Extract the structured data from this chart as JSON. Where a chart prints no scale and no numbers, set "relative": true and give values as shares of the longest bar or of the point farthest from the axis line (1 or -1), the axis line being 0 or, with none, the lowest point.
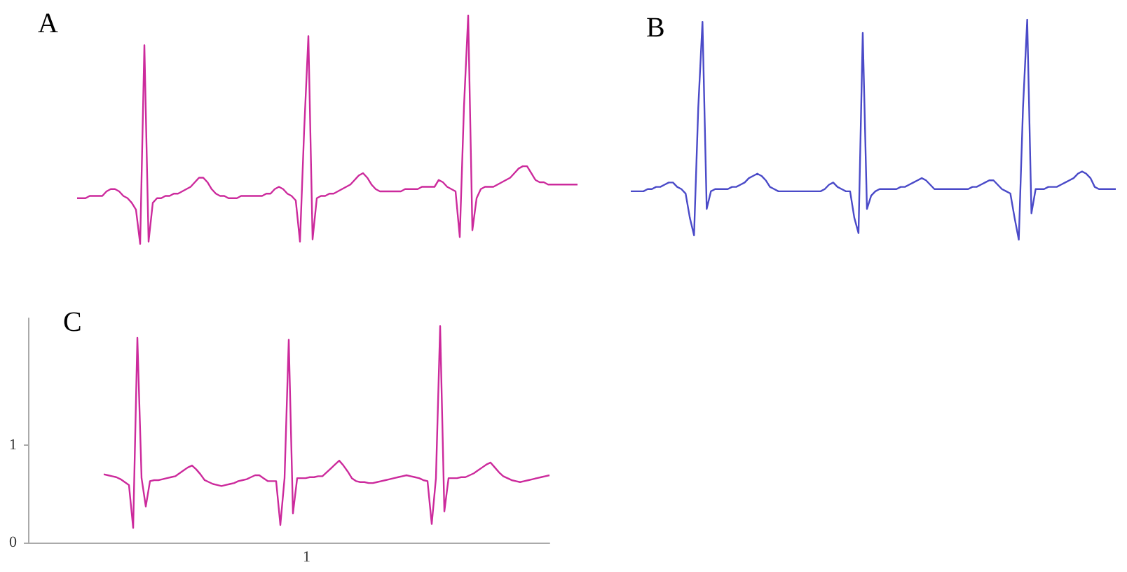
{
  "chart_data": [
    {
      "type": "line",
      "title": "A",
      "relative": true,
      "tick_labels": false,
      "grid": false,
      "marker": "none",
      "line_style": "solid",
      "categories": [
        null,
        null,
        null,
        null,
        null,
        null,
        null,
        null,
        null,
        null,
        null,
        null,
        null,
        null,
        null,
        null,
        null,
        null,
        null,
        null,
        null,
        null,
        null,
        null,
        null,
        null,
        null,
        null,
        null,
        null,
        null,
        null,
        null,
        null,
        null,
        null,
        null,
        null,
        null,
        null,
        null,
        null,
        null,
        null,
        null,
        null,
        null,
        null,
        null,
        null,
        null,
        null,
        null,
        null,
        null,
        null,
        null,
        null,
        null,
        null,
        null,
        null,
        null,
        null,
        null,
        null,
        null,
        null,
        null,
        null,
        null,
        null,
        null,
        null,
        null,
        null,
        null,
        null,
        null,
        null,
        null,
        null,
        null,
        null,
        null,
        null,
        null,
        null,
        null,
        null,
        null,
        null,
        null,
        null,
        null,
        null,
        null,
        null,
        null,
        null,
        null,
        null,
        null,
        null,
        null,
        null,
        null,
        null,
        null,
        null,
        null,
        null,
        null,
        null,
        null,
        null,
        null,
        null,
        null,
        null
      ],
      "series": [
        {
          "color": "#cc2a9c",
          "values": [
            0.2,
            0.2,
            0.2,
            0.21,
            0.21,
            0.21,
            0.21,
            0.23,
            0.24,
            0.24,
            0.23,
            0.21,
            0.2,
            0.18,
            0.15,
            0.0,
            0.87,
            0.01,
            0.18,
            0.2,
            0.2,
            0.21,
            0.21,
            0.22,
            0.22,
            0.23,
            0.24,
            0.25,
            0.27,
            0.29,
            0.29,
            0.27,
            0.24,
            0.22,
            0.21,
            0.21,
            0.2,
            0.2,
            0.2,
            0.21,
            0.21,
            0.21,
            0.21,
            0.21,
            0.21,
            0.22,
            0.22,
            0.24,
            0.25,
            0.24,
            0.22,
            0.21,
            0.19,
            0.01,
            0.5,
            0.91,
            0.02,
            0.2,
            0.21,
            0.21,
            0.22,
            0.22,
            0.23,
            0.24,
            0.25,
            0.26,
            0.28,
            0.3,
            0.31,
            0.29,
            0.26,
            0.24,
            0.23,
            0.23,
            0.23,
            0.23,
            0.23,
            0.23,
            0.24,
            0.24,
            0.24,
            0.24,
            0.25,
            0.25,
            0.25,
            0.25,
            0.28,
            0.27,
            0.25,
            0.24,
            0.23,
            0.03,
            0.6,
            1.0,
            0.06,
            0.2,
            0.24,
            0.25,
            0.25,
            0.25,
            0.26,
            0.27,
            0.28,
            0.29,
            0.31,
            0.33,
            0.34,
            0.34,
            0.31,
            0.28,
            0.27,
            0.27,
            0.26,
            0.26,
            0.26,
            0.26,
            0.26,
            0.26,
            0.26,
            0.26
          ]
        }
      ]
    },
    {
      "type": "line",
      "title": "B",
      "relative": true,
      "tick_labels": false,
      "grid": false,
      "marker": "none",
      "line_style": "solid",
      "categories": [
        null,
        null,
        null,
        null,
        null,
        null,
        null,
        null,
        null,
        null,
        null,
        null,
        null,
        null,
        null,
        null,
        null,
        null,
        null,
        null,
        null,
        null,
        null,
        null,
        null,
        null,
        null,
        null,
        null,
        null,
        null,
        null,
        null,
        null,
        null,
        null,
        null,
        null,
        null,
        null,
        null,
        null,
        null,
        null,
        null,
        null,
        null,
        null,
        null,
        null,
        null,
        null,
        null,
        null,
        null,
        null,
        null,
        null,
        null,
        null,
        null,
        null,
        null,
        null,
        null,
        null,
        null,
        null,
        null,
        null,
        null,
        null,
        null,
        null,
        null,
        null,
        null,
        null,
        null,
        null,
        null,
        null,
        null,
        null,
        null,
        null,
        null,
        null,
        null,
        null,
        null,
        null,
        null,
        null,
        null,
        null,
        null,
        null,
        null,
        null,
        null,
        null,
        null,
        null,
        null,
        null,
        null,
        null,
        null,
        null,
        null,
        null,
        null,
        null,
        null,
        null
      ],
      "series": [
        {
          "color": "#4a4ac8",
          "values": [
            0.22,
            0.22,
            0.22,
            0.22,
            0.23,
            0.23,
            0.24,
            0.24,
            0.25,
            0.26,
            0.26,
            0.24,
            0.23,
            0.21,
            0.1,
            0.02,
            0.6,
            0.99,
            0.14,
            0.22,
            0.23,
            0.23,
            0.23,
            0.23,
            0.24,
            0.24,
            0.25,
            0.26,
            0.28,
            0.29,
            0.3,
            0.29,
            0.27,
            0.24,
            0.23,
            0.22,
            0.22,
            0.22,
            0.22,
            0.22,
            0.22,
            0.22,
            0.22,
            0.22,
            0.22,
            0.22,
            0.23,
            0.25,
            0.26,
            0.24,
            0.23,
            0.22,
            0.22,
            0.1,
            0.03,
            0.94,
            0.14,
            0.2,
            0.22,
            0.23,
            0.23,
            0.23,
            0.23,
            0.23,
            0.24,
            0.24,
            0.25,
            0.26,
            0.27,
            0.28,
            0.27,
            0.25,
            0.23,
            0.23,
            0.23,
            0.23,
            0.23,
            0.23,
            0.23,
            0.23,
            0.23,
            0.24,
            0.24,
            0.25,
            0.26,
            0.27,
            0.27,
            0.25,
            0.23,
            0.22,
            0.21,
            0.1,
            0.0,
            0.6,
            1.0,
            0.12,
            0.23,
            0.23,
            0.23,
            0.24,
            0.24,
            0.24,
            0.25,
            0.26,
            0.27,
            0.28,
            0.3,
            0.31,
            0.3,
            0.28,
            0.24,
            0.23,
            0.23,
            0.23,
            0.23,
            0.23
          ]
        }
      ]
    },
    {
      "type": "line",
      "title": "C",
      "grid": false,
      "marker": "none",
      "line_style": "solid",
      "ylim": [
        0,
        2.3
      ],
      "yticks": [
        0,
        1
      ],
      "annotations": [
        "1"
      ],
      "categories": [
        null,
        null,
        null,
        null,
        null,
        null,
        null,
        null,
        null,
        null,
        null,
        null,
        null,
        null,
        null,
        null,
        null,
        null,
        null,
        null,
        null,
        null,
        null,
        null,
        null,
        null,
        null,
        null,
        null,
        null,
        null,
        null,
        null,
        null,
        null,
        null,
        null,
        null,
        null,
        null,
        null,
        null,
        null,
        null,
        null,
        null,
        null,
        null,
        null,
        null,
        null,
        null,
        null,
        null,
        null,
        null,
        null,
        null,
        null,
        null,
        null,
        null,
        null,
        null,
        null,
        null,
        null,
        null,
        null,
        null,
        null,
        null,
        null,
        null,
        null,
        null,
        null,
        null,
        null,
        null,
        null,
        null,
        null,
        null,
        null,
        null,
        null,
        null,
        null,
        null,
        null,
        null,
        null,
        null,
        null,
        null,
        null,
        null,
        null,
        null,
        null,
        null,
        null,
        null,
        null,
        null,
        null,
        null,
        null,
        null,
        null,
        null,
        null,
        null,
        null,
        null,
        null,
        null,
        null,
        null,
        null,
        null,
        null,
        null,
        null
      ],
      "series": [
        {
          "color": "#cc2a9c",
          "values": [
            null,
            null,
            null,
            null,
            null,
            null,
            null,
            null,
            null,
            null,
            null,
            null,
            null,
            null,
            null,
            null,
            null,
            null,
            0.7,
            0.69,
            0.68,
            0.67,
            0.65,
            0.62,
            0.59,
            0.15,
            2.1,
            0.66,
            0.37,
            0.63,
            0.64,
            0.64,
            0.65,
            0.66,
            0.67,
            0.68,
            0.71,
            0.74,
            0.77,
            0.79,
            0.75,
            0.7,
            0.64,
            0.62,
            0.6,
            0.59,
            0.58,
            0.59,
            0.6,
            0.61,
            0.63,
            0.64,
            0.65,
            0.67,
            0.69,
            0.69,
            0.66,
            0.63,
            0.63,
            0.63,
            0.18,
            0.66,
            2.08,
            0.3,
            0.66,
            0.66,
            0.66,
            0.67,
            0.67,
            0.68,
            0.68,
            0.72,
            0.76,
            0.8,
            0.84,
            0.79,
            0.73,
            0.66,
            0.63,
            0.62,
            0.62,
            0.61,
            0.61,
            0.62,
            0.63,
            0.64,
            0.65,
            0.66,
            0.67,
            0.68,
            0.69,
            0.68,
            0.67,
            0.66,
            0.64,
            0.63,
            0.19,
            0.66,
            2.22,
            0.32,
            0.66,
            0.66,
            0.66,
            0.67,
            0.67,
            0.69,
            0.71,
            0.74,
            0.77,
            0.8,
            0.82,
            0.77,
            0.72,
            0.68,
            0.66,
            0.64,
            0.63,
            0.62,
            0.63,
            0.64,
            0.65,
            0.66,
            0.67,
            0.68,
            0.69
          ]
        }
      ]
    }
  ]
}
